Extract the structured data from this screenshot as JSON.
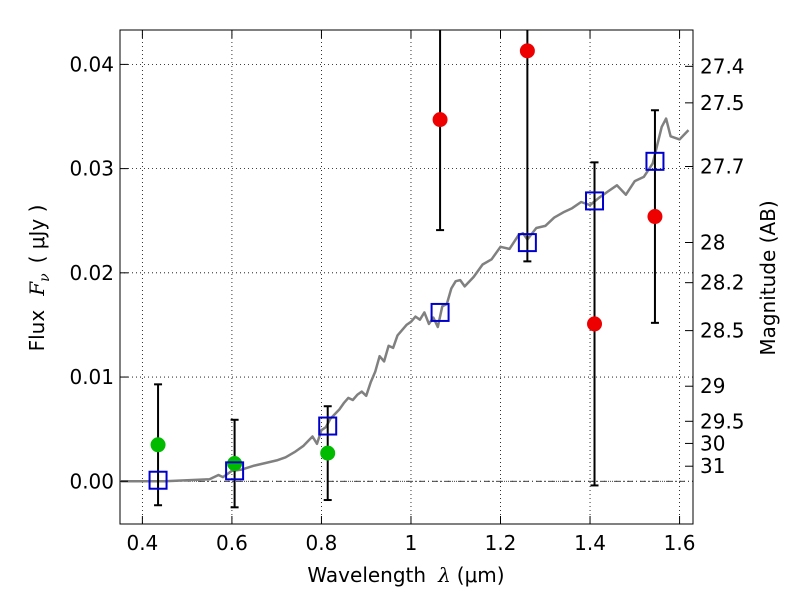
{
  "chart_data": {
    "type": "scatter",
    "xlabel_text": "Wavelength",
    "xlabel_symbol": "λ",
    "xlabel_unit": "(μm)",
    "ylabel_text": "Flux",
    "ylabel_symbol": "F",
    "ylabel_subscript": "ν",
    "ylabel_unit": "( μJy )",
    "y2label": "Magnitude (AB)",
    "xlim": [
      0.35,
      1.63
    ],
    "ylim": [
      -0.0041,
      0.0433
    ],
    "xticks": [
      {
        "value": 0.4,
        "label": "0.4"
      },
      {
        "value": 0.6,
        "label": "0.6"
      },
      {
        "value": 0.8,
        "label": "0.8"
      },
      {
        "value": 1.0,
        "label": "1"
      },
      {
        "value": 1.2,
        "label": "1.2"
      },
      {
        "value": 1.4,
        "label": "1.4"
      },
      {
        "value": 1.6,
        "label": "1.6"
      }
    ],
    "yticks": [
      {
        "value": 0.0,
        "label": "0.00"
      },
      {
        "value": 0.01,
        "label": "0.01"
      },
      {
        "value": 0.02,
        "label": "0.02"
      },
      {
        "value": 0.03,
        "label": "0.03"
      },
      {
        "value": 0.04,
        "label": "0.04"
      }
    ],
    "y2ticks": [
      {
        "value": 27.4,
        "label": "27.4"
      },
      {
        "value": 27.5,
        "label": "27.5"
      },
      {
        "value": 27.7,
        "label": "27.7"
      },
      {
        "value": 28.0,
        "label": "28"
      },
      {
        "value": 28.2,
        "label": "28.2"
      },
      {
        "value": 28.5,
        "label": "28.5"
      },
      {
        "value": 29.0,
        "label": "29"
      },
      {
        "value": 29.5,
        "label": "29.5"
      },
      {
        "value": 30.0,
        "label": "30"
      },
      {
        "value": 31.0,
        "label": "31"
      }
    ],
    "grid": true,
    "zero_line": true,
    "series": [
      {
        "name": "model-spectrum",
        "kind": "line",
        "color": "#808080",
        "x": [
          0.35,
          0.4,
          0.45,
          0.5,
          0.55,
          0.57,
          0.58,
          0.6,
          0.62,
          0.65,
          0.68,
          0.7,
          0.72,
          0.74,
          0.76,
          0.78,
          0.79,
          0.8,
          0.81,
          0.82,
          0.84,
          0.85,
          0.86,
          0.87,
          0.88,
          0.89,
          0.9,
          0.91,
          0.92,
          0.93,
          0.94,
          0.95,
          0.96,
          0.97,
          0.98,
          0.99,
          1.0,
          1.01,
          1.02,
          1.03,
          1.04,
          1.05,
          1.06,
          1.07,
          1.08,
          1.09,
          1.1,
          1.11,
          1.12,
          1.14,
          1.16,
          1.18,
          1.2,
          1.22,
          1.24,
          1.25,
          1.26,
          1.28,
          1.3,
          1.32,
          1.34,
          1.36,
          1.38,
          1.4,
          1.42,
          1.44,
          1.46,
          1.48,
          1.5,
          1.52,
          1.54,
          1.56,
          1.57,
          1.58,
          1.6,
          1.62
        ],
        "y": [
          0.0,
          0.0,
          0.0,
          0.0001,
          0.0002,
          0.0006,
          0.0004,
          0.001,
          0.0011,
          0.0015,
          0.0018,
          0.002,
          0.0023,
          0.0028,
          0.0034,
          0.0043,
          0.0036,
          0.0049,
          0.0052,
          0.006,
          0.0069,
          0.0075,
          0.008,
          0.0078,
          0.0083,
          0.0086,
          0.0082,
          0.0095,
          0.0105,
          0.012,
          0.0115,
          0.013,
          0.0128,
          0.014,
          0.0145,
          0.015,
          0.0153,
          0.0158,
          0.0155,
          0.0162,
          0.0151,
          0.0157,
          0.0148,
          0.0168,
          0.017,
          0.0185,
          0.0192,
          0.0193,
          0.0187,
          0.0196,
          0.0208,
          0.0213,
          0.0225,
          0.0223,
          0.0236,
          0.0238,
          0.0232,
          0.0243,
          0.0245,
          0.0253,
          0.0258,
          0.0262,
          0.0268,
          0.0265,
          0.0272,
          0.0278,
          0.0284,
          0.0275,
          0.0288,
          0.0292,
          0.0305,
          0.034,
          0.0348,
          0.0331,
          0.0328,
          0.0337
        ]
      },
      {
        "name": "observed-detections",
        "kind": "points",
        "marker": "filled-circle",
        "color": "#00bb00",
        "points": [
          {
            "x": 0.435,
            "y": 0.0035,
            "yerr": 0.0058
          },
          {
            "x": 0.606,
            "y": 0.0017,
            "yerr": 0.0042
          },
          {
            "x": 0.814,
            "y": 0.0027,
            "yerr": 0.0045
          }
        ]
      },
      {
        "name": "observed-upper",
        "kind": "points",
        "marker": "filled-circle",
        "color": "#ee0000",
        "points": [
          {
            "x": 1.065,
            "y": 0.0347,
            "yerr": 0.0106
          },
          {
            "x": 1.26,
            "y": 0.0413,
            "yerr": 0.0202
          },
          {
            "x": 1.41,
            "y": 0.0151,
            "yerr": 0.0155
          },
          {
            "x": 1.545,
            "y": 0.0254,
            "yerr": 0.0102
          }
        ]
      },
      {
        "name": "model-bandpass",
        "kind": "points",
        "marker": "open-square",
        "color": "#0000cc",
        "points": [
          {
            "x": 0.435,
            "y": 0.0001
          },
          {
            "x": 0.606,
            "y": 0.001
          },
          {
            "x": 0.814,
            "y": 0.0053
          },
          {
            "x": 1.065,
            "y": 0.0162
          },
          {
            "x": 1.26,
            "y": 0.0229
          },
          {
            "x": 1.41,
            "y": 0.0269
          },
          {
            "x": 1.545,
            "y": 0.0307
          }
        ]
      }
    ]
  }
}
